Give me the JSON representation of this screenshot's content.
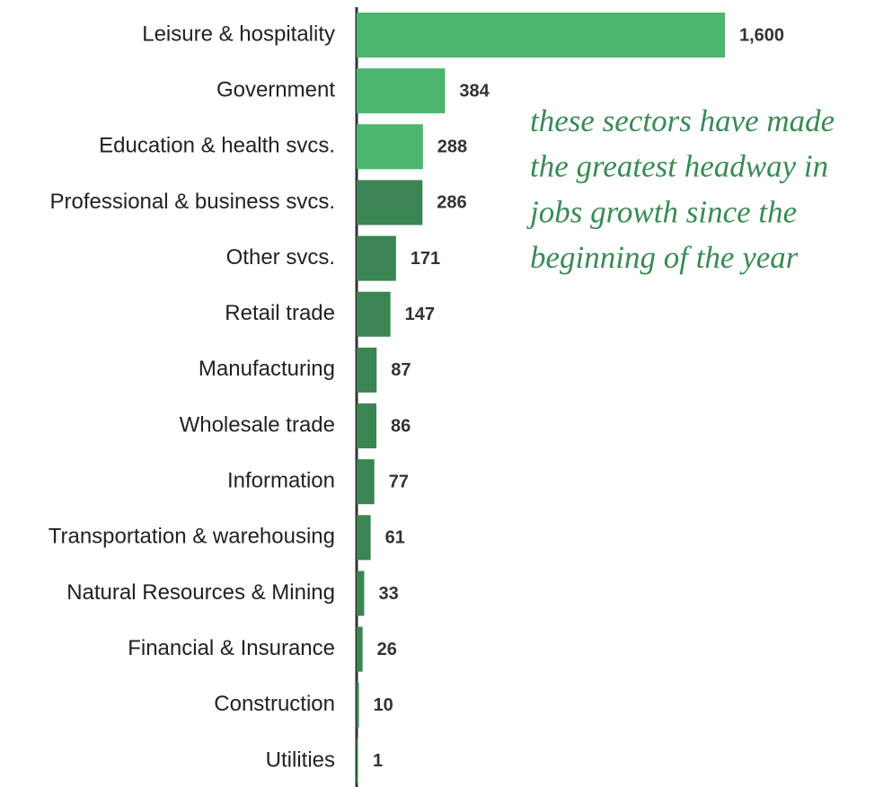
{
  "chart_data": {
    "type": "barh",
    "categories": [
      "Leisure & hospitality",
      "Government",
      "Education & health svcs.",
      "Professional & business svcs.",
      "Other svcs.",
      "Retail trade",
      "Manufacturing",
      "Wholesale trade",
      "Information",
      "Transportation & warehousing",
      "Natural Resources & Mining",
      "Financial & Insurance",
      "Construction",
      "Utilities"
    ],
    "values": [
      1600,
      384,
      288,
      286,
      171,
      147,
      87,
      86,
      77,
      61,
      33,
      26,
      10,
      1
    ],
    "value_labels": [
      "1,600",
      "384",
      "288",
      "286",
      "171",
      "147",
      "87",
      "86",
      "77",
      "61",
      "33",
      "26",
      "10",
      "1"
    ],
    "colors": [
      "#4cb56e",
      "#4cb56e",
      "#4cb56e",
      "#3a8552",
      "#3a8552",
      "#3a8552",
      "#3a8552",
      "#3a8552",
      "#3a8552",
      "#3a8552",
      "#3a8552",
      "#3a8552",
      "#3a8552",
      "#3a8552"
    ],
    "annotation": [
      "these sectors have made",
      "the greatest headway in",
      "jobs growth since the",
      "beginning of the year"
    ]
  }
}
